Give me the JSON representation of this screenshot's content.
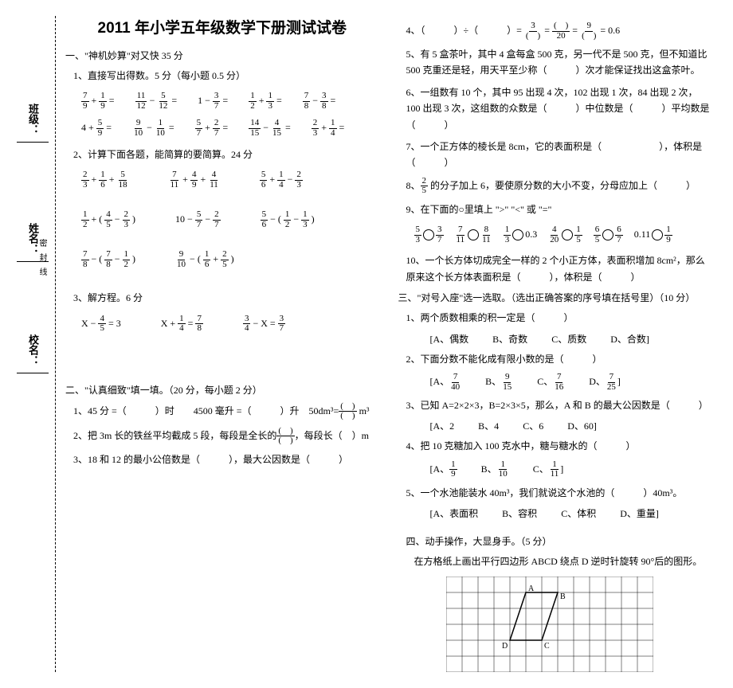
{
  "title": "2011 年小学五年级数学下册测试试卷",
  "binding": {
    "class": "班级：",
    "name": "姓名：",
    "school": "校名：",
    "seal": "密封线"
  },
  "s1": {
    "head": "一、\"神机妙算\"对又快 35 分",
    "p1": "1、直接写出得数。5 分（每小题 0.5 分）",
    "r1": [
      "7/9 + 1/9 =",
      "11/12 − 5/12 =",
      "1 − 3/7 =",
      "1/2 + 1/3 =",
      "7/8 − 3/8 ="
    ],
    "r2": [
      "4 + 5/9 =",
      "9/10 − 1/10 =",
      "5/7 + 2/7 =",
      "14/15 − 4/15 =",
      "2/3 + 1/4 ="
    ],
    "p2": "2、计算下面各题，能简算的要简算。24 分",
    "r3": [
      "2/3 + 1/6 + 5/18",
      "7/11 + 4/9 + 4/11",
      "5/6 + 1/4 − 2/3"
    ],
    "r4": [
      "1/2 + ( 4/5 − 2/3 )",
      "10 − 5/7 − 2/7",
      "5/6 − ( 1/2 − 1/3 )"
    ],
    "r5": [
      "7/8 − ( 7/8 − 1/2 )",
      "9/10 − ( 1/6 + 2/5 )"
    ],
    "p3": "3、解方程。6 分",
    "r6": [
      "X − 4/5 = 3",
      "X + 1/4 = 7/8",
      "3/4 − X = 3/7"
    ]
  },
  "s2": {
    "head": "二、\"认真细致\"填一填。（20 分，每小题 2 分）",
    "q1a": "1、45 分 =（　　　）时　　4500 毫升 =（　　　）升　50dm³=",
    "q1b": " m³",
    "q2a": "2、把 3m 长的铁丝平均截成 5 段，每段是全长的",
    "q2b": "，每段长（　）m",
    "q3": "3、18 和 12 的最小公倍数是（　　　），最大公因数是（　　　）",
    "q4a": "4、（　　　）÷（　　　）= ",
    "q4b": " = 0.6",
    "q5": "5、有 5 盒茶叶，其中 4 盒每盒 500 克，另一代不是 500 克，但不知道比 500 克重还是轻，用天平至少称（　　　）次才能保证找出这盒茶叶。",
    "q6": "6、一组数有 10 个，其中 95 出现 4 次，102 出现 1 次，84 出现 2 次，100 出现 3 次，这组数的众数是（　　　）中位数是（　　　）平均数是（　　　）",
    "q7": "7、一个正方体的棱长是 8cm，它的表面积是（　　　　　　），体积是（　　　）",
    "q8a": "8、",
    "q8b": " 的分子加上 6，要使原分数的大小不变，分母应加上（　　　）",
    "q9": "9、在下面的○里填上 \">\" \"<\" 或 \"=\"",
    "r9": [
      "5/3  3/7",
      "7/11  8/11",
      "1/3  0.3",
      "4/20  1/5",
      "6/5  6/7",
      "0.11  1/9"
    ],
    "q10": "10、一个长方体切成完全一样的 2 个小正方体，表面积增加 8cm²，那么原来这个长方体表面积是（　　　），体积是（　　　）"
  },
  "s3": {
    "head": "三、\"对号入座\"选一选取。（选出正确答案的序号填在括号里）（10 分）",
    "q1": "1、两个质数相乘的积一定是（　　　）",
    "o1": [
      "[A、偶数",
      "B、奇数",
      "C、质数",
      "D、合数]"
    ],
    "q2": "2、下面分数不能化成有限小数的是（　　　）",
    "o2": [
      "7/40",
      "9/15",
      "7/16",
      "7/25"
    ],
    "q3": "3、已知 A=2×2×3，B=2×3×5，那么，A 和 B 的最大公因数是（　　　）",
    "o3": [
      "[A、2",
      "B、4",
      "C、6",
      "D、60]"
    ],
    "q4": "4、把 10 克糖加入 100 克水中，糖与糖水的（　　　）",
    "o4": [
      "1/9",
      "1/10",
      "1/11"
    ],
    "q5": "5、一个水池能装水 40m³，我们就说这个水池的（　　　）40m³。",
    "o5": [
      "[A、表面积",
      "B、容积",
      "C、体积",
      "D、重量]"
    ]
  },
  "s4": {
    "head": "四、动手操作，大显身手。（5 分）",
    "q1": "在方格纸上画出平行四边形 ABCD 绕点 D 逆时针旋转 90°后的图形。"
  },
  "grid": {
    "cols": 13,
    "rows": 6,
    "cell": 20,
    "A": [
      5,
      1
    ],
    "B": [
      7,
      1
    ],
    "C": [
      6,
      4
    ],
    "D": [
      4,
      4
    ]
  }
}
